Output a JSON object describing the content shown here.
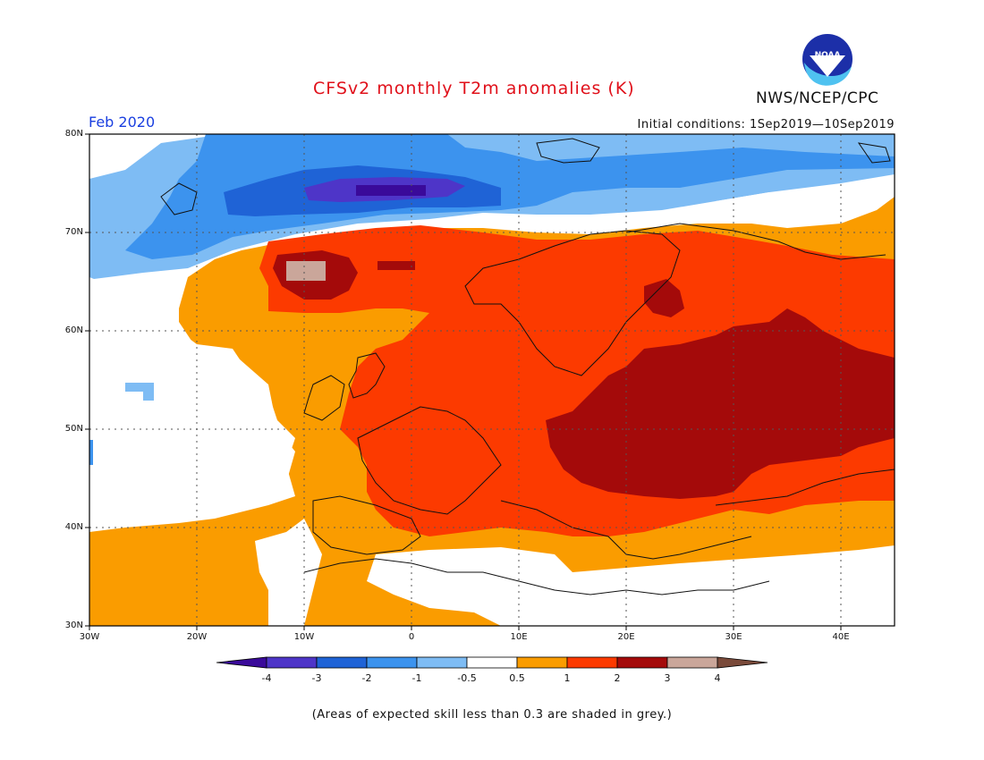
{
  "header": {
    "title": "CFSv2 monthly T2m anomalies (K)",
    "agency": "NWS/NCEP/CPC",
    "logo_text": "NOAA",
    "period": "Feb 2020",
    "initial_conditions": "Initial conditions: 1Sep2019—10Sep2019"
  },
  "map": {
    "lat_labels": [
      "80N",
      "70N",
      "60N",
      "50N",
      "40N",
      "30N"
    ],
    "lon_labels": [
      "30W",
      "20W",
      "10W",
      "0",
      "10E",
      "20E",
      "30E",
      "40E"
    ],
    "lat_range": [
      30,
      80
    ],
    "lon_range": [
      -30,
      45
    ]
  },
  "colorbar": {
    "labels": [
      "-4",
      "-3",
      "-2",
      "-1",
      "-0.5",
      "0.5",
      "1",
      "2",
      "3",
      "4"
    ],
    "colors": {
      "lt_-4": "#3a0a9a",
      "-4_-3": "#4e35c8",
      "-3_-2": "#1f63d6",
      "-2_-1": "#3c93ee",
      "-1_-0.5": "#7ebcf4",
      "-0.5_0.5": "#ffffff",
      "0.5_1": "#fa9c00",
      "1_2": "#fc3a00",
      "2_3": "#a40a0a",
      "3_4": "#caa69a",
      "gt_4": "#7a4a3a"
    }
  },
  "footnote": "(Areas of expected skill less than 0.3 are shaded in grey.)"
}
